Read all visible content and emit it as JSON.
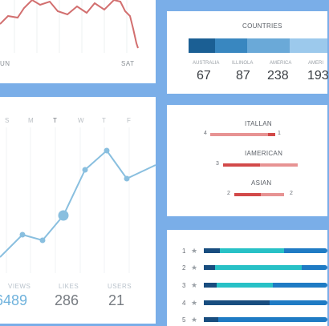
{
  "top_chart": {
    "labels": [
      "UN",
      "SAT"
    ],
    "line_color": "#d26f6f"
  },
  "weekly": {
    "days": [
      "S",
      "M",
      "T",
      "W",
      "T",
      "F"
    ],
    "line_color": "#89bfdf",
    "stats": [
      {
        "label": "VIEWS",
        "value": "6489"
      },
      {
        "label": "LIKES",
        "value": "286"
      },
      {
        "label": "USERS",
        "value": "21"
      }
    ]
  },
  "countries": {
    "title": "COUNTRIES",
    "segment_colors": [
      "#1b5f94",
      "#3987c0",
      "#6aa9d8",
      "#9cc9ec"
    ],
    "items": [
      {
        "label": "AUSTRALIA",
        "value": "67"
      },
      {
        "label": "ILLINOLA",
        "value": "87"
      },
      {
        "label": "AMERICA",
        "value": "238"
      },
      {
        "label": "AMERI",
        "value": "193"
      }
    ]
  },
  "cuisines": [
    {
      "name": "ITALLAN",
      "left": "4",
      "right": "1"
    },
    {
      "name": "IAMERICAN",
      "left": "3",
      "right": ""
    },
    {
      "name": "ASIAN",
      "left": "2",
      "right": "2"
    }
  ],
  "ratings": [
    "1",
    "2",
    "3",
    "4",
    "5"
  ],
  "colors": {
    "background": "#7aaee8",
    "accent_red": "#d24949",
    "accent_pink": "#e79393"
  }
}
